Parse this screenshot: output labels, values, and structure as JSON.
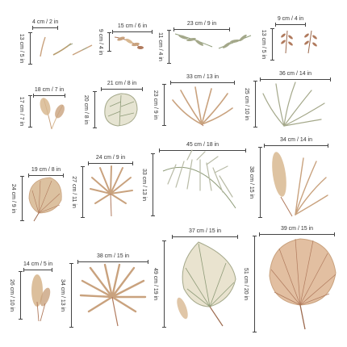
{
  "colors": {
    "sage": "#8f9c79",
    "tan": "#c9a27e",
    "rust": "#b07a5d",
    "sand": "#d8b891",
    "olive": "#a4a88a",
    "ink": "#444444"
  },
  "stickers": [
    {
      "name": "sticker-grass-stems",
      "width_label": "4 cm / 2 in",
      "height_label": "13 cm / 5 in"
    },
    {
      "name": "sticker-small-sprig",
      "width_label": "15 cm / 6 in",
      "height_label": "9 cm / 4 in"
    },
    {
      "name": "sticker-leafy-branches",
      "width_label": "23 cm / 9 in",
      "height_label": "11 cm / 4 in"
    },
    {
      "name": "sticker-berry-sprigs",
      "width_label": "9 cm / 4 in",
      "height_label": "13 cm / 5 in"
    },
    {
      "name": "sticker-pampas-small",
      "width_label": "18 cm / 7 in",
      "height_label": "17 cm / 7 in"
    },
    {
      "name": "sticker-monstera-leaf",
      "width_label": "21 cm / 8 in",
      "height_label": "20 cm / 8 in"
    },
    {
      "name": "sticker-palm-frond-tan",
      "width_label": "33 cm / 13 in",
      "height_label": "23 cm / 9 in"
    },
    {
      "name": "sticker-palm-frond-sage",
      "width_label": "36 cm / 14 in",
      "height_label": "25 cm / 10 in"
    },
    {
      "name": "sticker-fan-leaf-small",
      "width_label": "19 cm / 8 in",
      "height_label": "24 cm / 9 in"
    },
    {
      "name": "sticker-fan-palm-medium",
      "width_label": "24 cm / 9 in",
      "height_label": "27 cm / 11 in"
    },
    {
      "name": "sticker-arching-frond",
      "width_label": "45 cm / 18 in",
      "height_label": "33 cm / 13 in"
    },
    {
      "name": "sticker-pampas-palm-combo",
      "width_label": "34 cm / 14 in",
      "height_label": "38 cm / 15 in"
    },
    {
      "name": "sticker-pampas-tall",
      "width_label": "14 cm / 5 in",
      "height_label": "26 cm / 10 in"
    },
    {
      "name": "sticker-fan-palm-large",
      "width_label": "38 cm / 15 in",
      "height_label": "34 cm / 13 in"
    },
    {
      "name": "sticker-dried-leaf-large",
      "width_label": "37 cm / 15 in",
      "height_label": "49 cm / 19 in"
    },
    {
      "name": "sticker-fan-leaf-large",
      "width_label": "39 cm / 15 in",
      "height_label": "51 cm / 20 in"
    }
  ]
}
